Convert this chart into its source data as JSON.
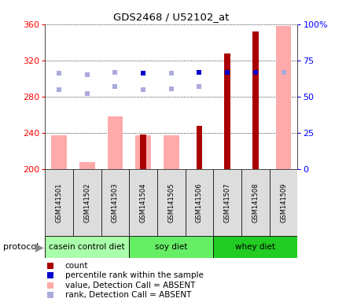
{
  "title": "GDS2468 / U52102_at",
  "samples": [
    "GSM141501",
    "GSM141502",
    "GSM141503",
    "GSM141504",
    "GSM141505",
    "GSM141506",
    "GSM141507",
    "GSM141508",
    "GSM141509"
  ],
  "groups": [
    {
      "name": "casein control diet",
      "indices": [
        0,
        1,
        2
      ],
      "color": "#aaffaa"
    },
    {
      "name": "soy diet",
      "indices": [
        3,
        4,
        5
      ],
      "color": "#66ee66"
    },
    {
      "name": "whey diet",
      "indices": [
        6,
        7,
        8
      ],
      "color": "#22cc22"
    }
  ],
  "ylim_left": [
    200,
    360
  ],
  "ylim_right": [
    0,
    100
  ],
  "yticks_left": [
    200,
    240,
    280,
    320,
    360
  ],
  "yticks_right": [
    0,
    25,
    50,
    75,
    100
  ],
  "count_values": [
    null,
    null,
    null,
    238,
    null,
    248,
    328,
    352,
    null
  ],
  "value_absent": [
    237,
    208,
    258,
    237,
    237,
    null,
    null,
    null,
    358
  ],
  "rank_absent_val": [
    288,
    283,
    291,
    288,
    289,
    291,
    null,
    null,
    307
  ],
  "percentile_present": [
    null,
    null,
    null,
    66,
    null,
    67,
    67,
    67,
    null
  ],
  "percentile_absent": [
    66,
    65,
    67,
    null,
    66,
    null,
    null,
    null,
    67
  ],
  "color_count": "#aa0000",
  "color_rank_present": "#0000cc",
  "color_value_absent": "#ffaaaa",
  "color_rank_absent": "#aaaadd",
  "background_color": "#ffffff",
  "plot_bg": "#ffffff",
  "spine_color": "#000000"
}
